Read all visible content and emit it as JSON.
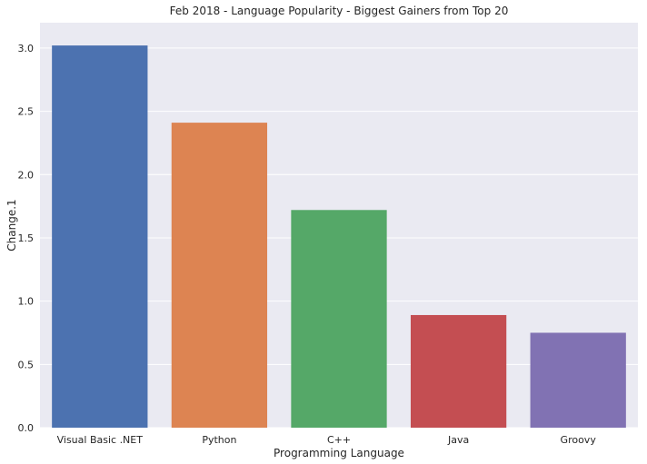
{
  "chart_data": {
    "type": "bar",
    "title": "Feb 2018 - Language Popularity - Biggest Gainers from Top 20",
    "xlabel": "Programming Language",
    "ylabel": "Change.1",
    "categories": [
      "Visual Basic .NET",
      "Python",
      "C++",
      "Java",
      "Groovy"
    ],
    "values": [
      3.02,
      2.41,
      1.72,
      0.89,
      0.75
    ],
    "colors": [
      "#4c72b0",
      "#dd8452",
      "#55a868",
      "#c44e52",
      "#8172b3"
    ],
    "ylim": [
      0,
      3.2
    ],
    "yticks": [
      0.0,
      0.5,
      1.0,
      1.5,
      2.0,
      2.5,
      3.0
    ],
    "ytick_labels": [
      "0.0",
      "0.5",
      "1.0",
      "1.5",
      "2.0",
      "2.5",
      "3.0"
    ],
    "grid": true,
    "background_color": "#eaeaf2"
  }
}
